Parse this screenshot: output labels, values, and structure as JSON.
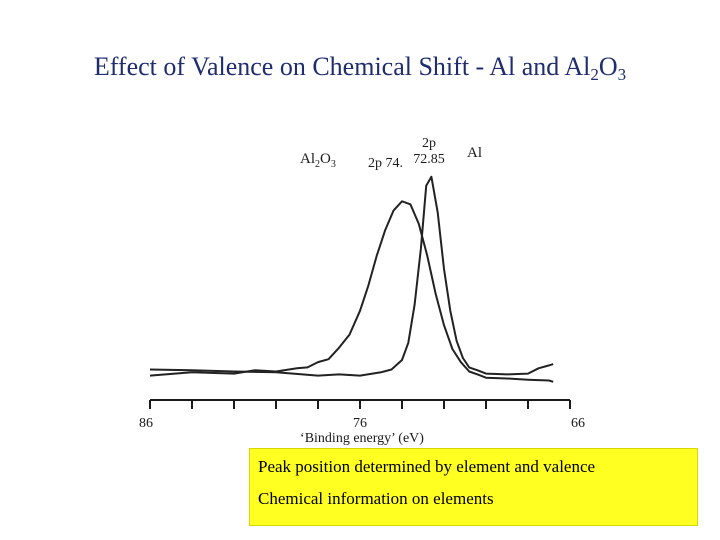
{
  "title": {
    "text_before": "Effect of Valence on Chemical Shift - Al and Al",
    "sub1": "2",
    "text_mid": "O",
    "sub2": "3"
  },
  "chart_data": {
    "type": "line",
    "title": "",
    "xlabel": "‘Binding energy’ (eV)",
    "ylabel": "",
    "xlim": [
      86,
      66
    ],
    "x_reversed": true,
    "grid": false,
    "x_ticks": [
      86,
      76,
      66
    ],
    "minor_tick_step": 2,
    "series": [
      {
        "name": "Al2O3",
        "label_parts": {
          "main": "Al",
          "sub1": "2",
          "mid": "O",
          "sub2": "3"
        },
        "peak_label": "2p 74.",
        "color": "#222222",
        "x": [
          86.0,
          84.0,
          82.0,
          81.0,
          80.0,
          79.0,
          78.5,
          78.0,
          77.5,
          77.0,
          76.5,
          76.0,
          75.6,
          75.2,
          74.8,
          74.4,
          74.0,
          73.6,
          73.2,
          72.8,
          72.4,
          72.0,
          71.6,
          71.2,
          70.8,
          70.4,
          70.0,
          69.0,
          68.0,
          67.0,
          66.8
        ],
        "y": [
          0.0,
          0.01,
          0.01,
          0.02,
          0.02,
          0.03,
          0.04,
          0.06,
          0.08,
          0.13,
          0.2,
          0.31,
          0.44,
          0.58,
          0.71,
          0.8,
          0.85,
          0.83,
          0.74,
          0.58,
          0.4,
          0.24,
          0.13,
          0.06,
          0.02,
          0.0,
          -0.01,
          -0.02,
          -0.02,
          -0.03,
          -0.03
        ]
      },
      {
        "name": "Al",
        "label_parts": {
          "main": "Al"
        },
        "peak_label": "2p\n72.85",
        "color": "#222222",
        "x": [
          86.0,
          84.0,
          82.0,
          80.0,
          78.0,
          77.0,
          76.0,
          75.0,
          74.5,
          74.0,
          73.7,
          73.4,
          73.1,
          72.85,
          72.6,
          72.3,
          72.0,
          71.7,
          71.4,
          71.1,
          70.8,
          70.4,
          70.0,
          69.0,
          68.0,
          67.5,
          67.0,
          66.8
        ],
        "y": [
          0.03,
          0.02,
          0.02,
          0.01,
          0.0,
          0.0,
          0.0,
          0.01,
          0.03,
          0.07,
          0.16,
          0.34,
          0.62,
          0.92,
          0.97,
          0.79,
          0.52,
          0.31,
          0.17,
          0.08,
          0.04,
          0.02,
          0.01,
          0.0,
          0.01,
          0.03,
          0.05,
          0.05
        ]
      }
    ]
  },
  "notes": [
    "Peak position determined by element and valence",
    "Chemical information on elements"
  ]
}
